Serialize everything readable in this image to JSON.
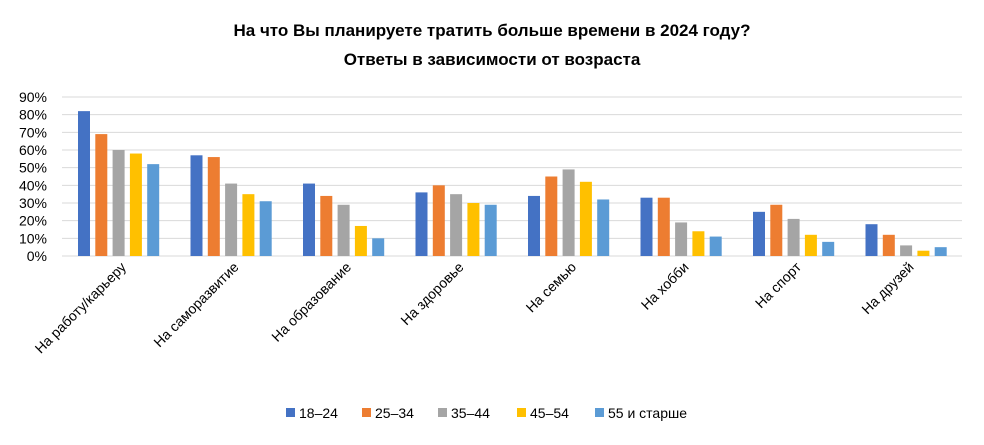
{
  "chart_data": {
    "type": "bar",
    "title_line1": "На что Вы планируете тратить больше времени в 2024 году?",
    "title_line2": "Ответы в зависимости от возраста",
    "xlabel": "",
    "ylabel": "",
    "ylim": [
      0,
      90
    ],
    "ytick_values": [
      0,
      10,
      20,
      30,
      40,
      50,
      60,
      70,
      80,
      90
    ],
    "yticks": [
      "0%",
      "10%",
      "20%",
      "30%",
      "40%",
      "50%",
      "60%",
      "70%",
      "80%",
      "90%"
    ],
    "grid": true,
    "legend_position": "bottom",
    "categories": [
      "На работу/карьеру",
      "На саморазвитие",
      "На образование",
      "На здоровье",
      "На семью",
      "На хобби",
      "На спорт",
      "На друзей"
    ],
    "series": [
      {
        "name": "18–24",
        "color": "#4472c4",
        "values": [
          82,
          57,
          41,
          36,
          34,
          33,
          25,
          18
        ]
      },
      {
        "name": "25–34",
        "color": "#ed7d31",
        "values": [
          69,
          56,
          34,
          40,
          45,
          33,
          29,
          12
        ]
      },
      {
        "name": "35–44",
        "color": "#a5a5a5",
        "values": [
          60,
          41,
          29,
          35,
          49,
          19,
          21,
          6
        ]
      },
      {
        "name": "45–54",
        "color": "#ffc000",
        "values": [
          58,
          35,
          17,
          30,
          42,
          14,
          12,
          3
        ]
      },
      {
        "name": "55 и старше",
        "color": "#5b9bd5",
        "values": [
          52,
          31,
          10,
          29,
          32,
          11,
          8,
          5
        ]
      }
    ]
  }
}
